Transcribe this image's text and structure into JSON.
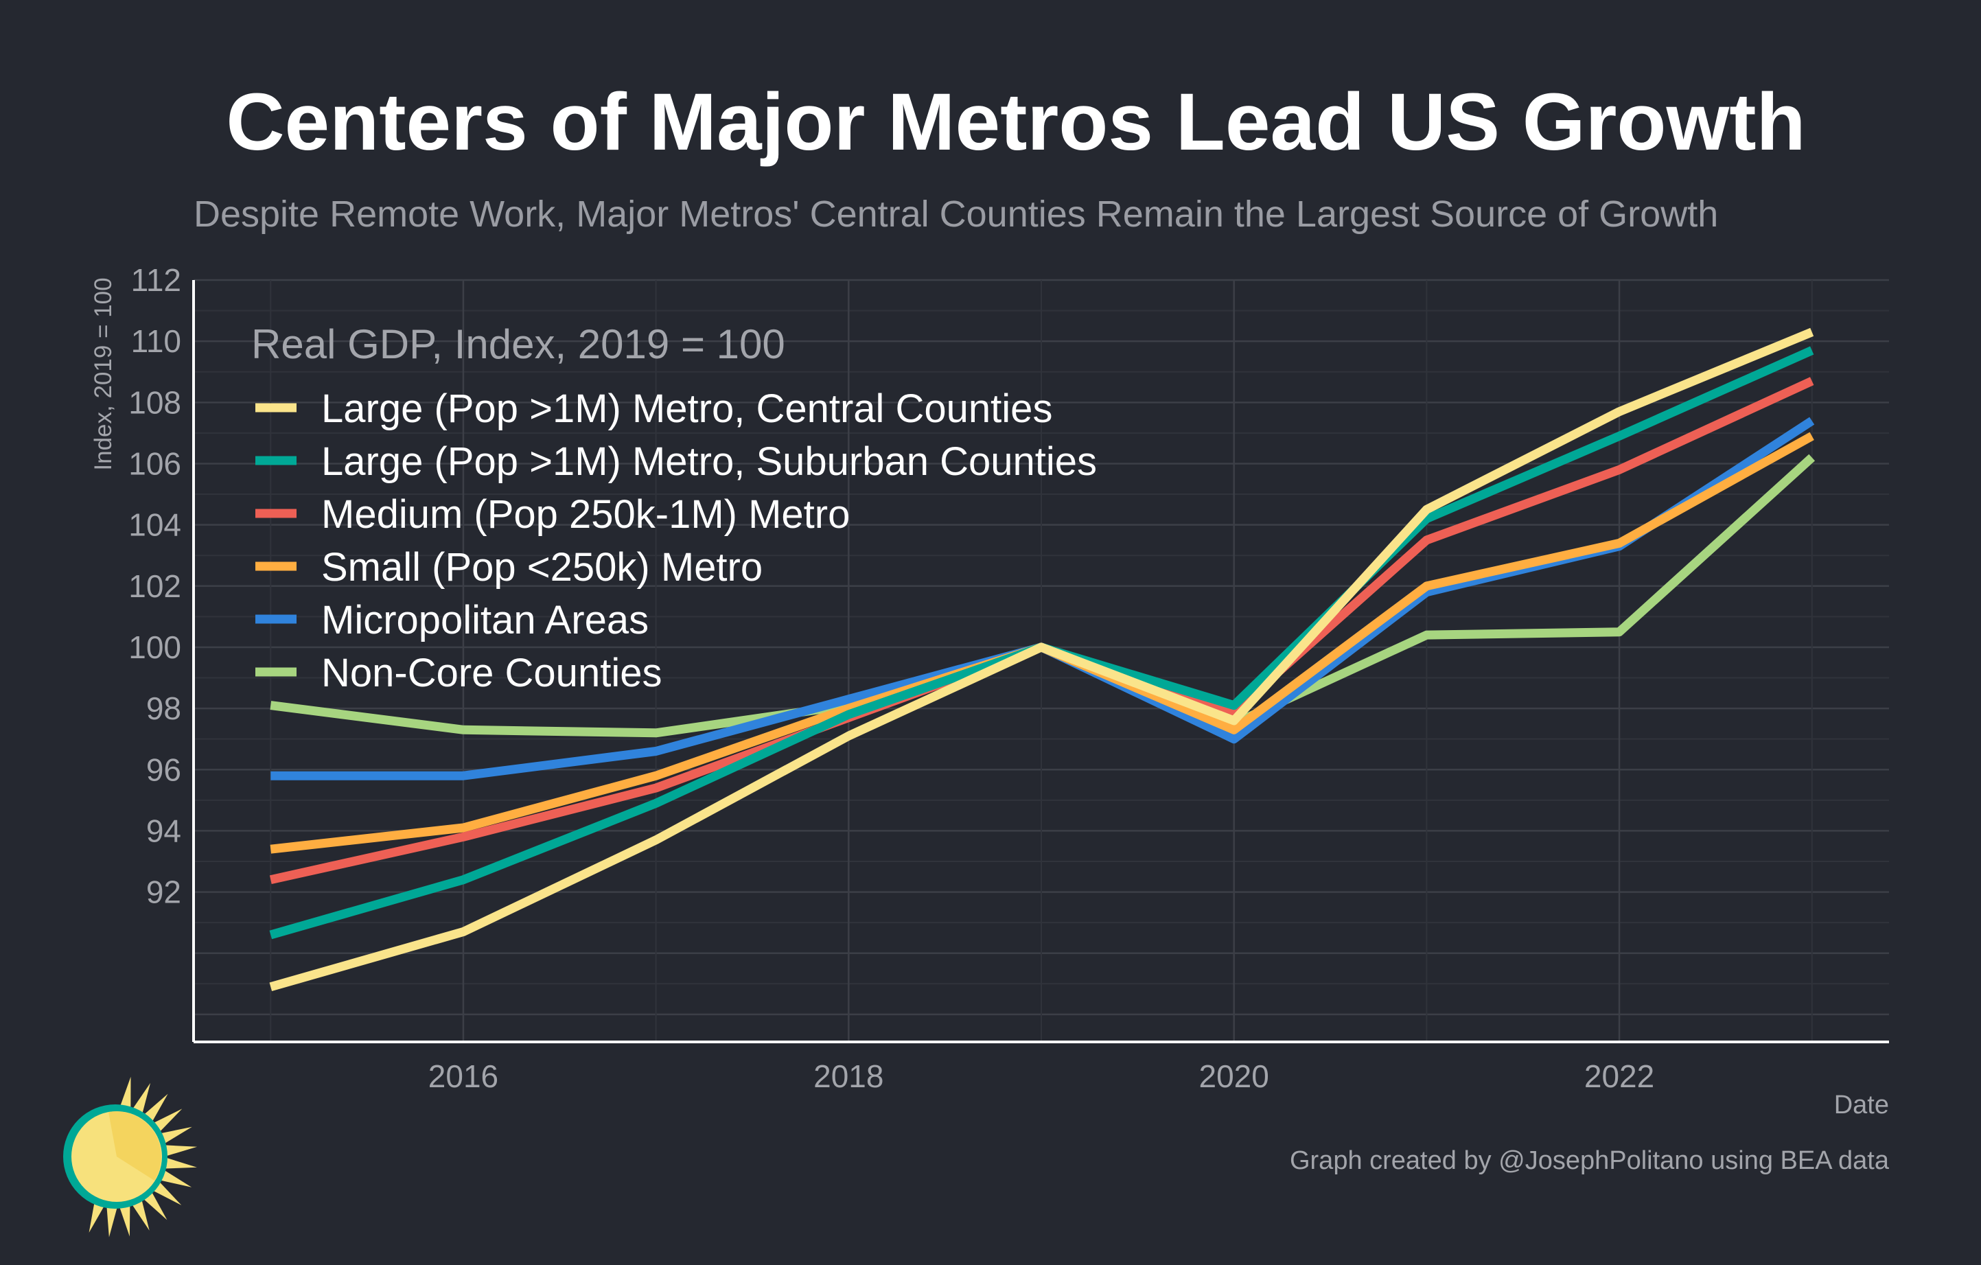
{
  "colors": {
    "background": "#252830",
    "grid_major": "#3c3f47",
    "grid_minor": "#30333b",
    "axis": "#ffffff"
  },
  "logo": {
    "icon": "sun-icon"
  },
  "chart_data": {
    "type": "line",
    "title": "Centers of Major Metros Lead US Growth",
    "subtitle": "Despite Remote Work, Major Metros' Central Counties Remain the Largest Source of Growth",
    "xlabel": "Date",
    "ylabel": "Index, 2019 = 100",
    "legend_title": "Real GDP, Index, 2019 = 100",
    "legend_position": "top-left",
    "grid": true,
    "caption": "Graph created by @JosephPolitano using BEA data",
    "x": [
      2015,
      2016,
      2017,
      2018,
      2019,
      2020,
      2021,
      2022,
      2023
    ],
    "xlim": [
      2014.6,
      2023.4
    ],
    "ylim": [
      87.1,
      112
    ],
    "x_ticks": [
      2016,
      2018,
      2020,
      2022
    ],
    "x_tick_labels": [
      "2016",
      "2018",
      "2020",
      "2022"
    ],
    "y_ticks": [
      92,
      94,
      96,
      98,
      100,
      102,
      104,
      106,
      108,
      110,
      112
    ],
    "y_tick_labels": [
      "92",
      "94",
      "96",
      "98",
      "100",
      "102",
      "104",
      "106",
      "108",
      "110",
      "112"
    ],
    "series": [
      {
        "name": "Large (Pop >1M) Metro, Central Counties",
        "color": "#fae48b",
        "values": [
          88.9,
          90.7,
          93.7,
          97.1,
          100.0,
          97.6,
          104.5,
          107.7,
          110.3
        ]
      },
      {
        "name": "Large (Pop >1M) Metro, Suburban Counties",
        "color": "#00a896",
        "values": [
          90.6,
          92.4,
          94.9,
          97.8,
          100.0,
          98.1,
          104.2,
          106.9,
          109.7
        ]
      },
      {
        "name": "Medium (Pop 250k-1M) Metro",
        "color": "#ee6055",
        "values": [
          92.4,
          93.8,
          95.4,
          97.7,
          100.0,
          97.9,
          103.5,
          105.8,
          108.7
        ]
      },
      {
        "name": "Small (Pop <250k) Metro",
        "color": "#ffae41",
        "values": [
          93.4,
          94.1,
          95.8,
          98.0,
          100.0,
          97.3,
          102.0,
          103.4,
          106.9
        ]
      },
      {
        "name": "Micropolitan Areas",
        "color": "#3083dc",
        "values": [
          95.8,
          95.8,
          96.6,
          98.3,
          100.0,
          97.0,
          101.8,
          103.3,
          107.4
        ]
      },
      {
        "name": "Non-Core Counties",
        "color": "#a7d580",
        "values": [
          98.1,
          97.3,
          97.2,
          98.1,
          100.0,
          97.5,
          100.4,
          100.5,
          106.2
        ]
      }
    ]
  }
}
